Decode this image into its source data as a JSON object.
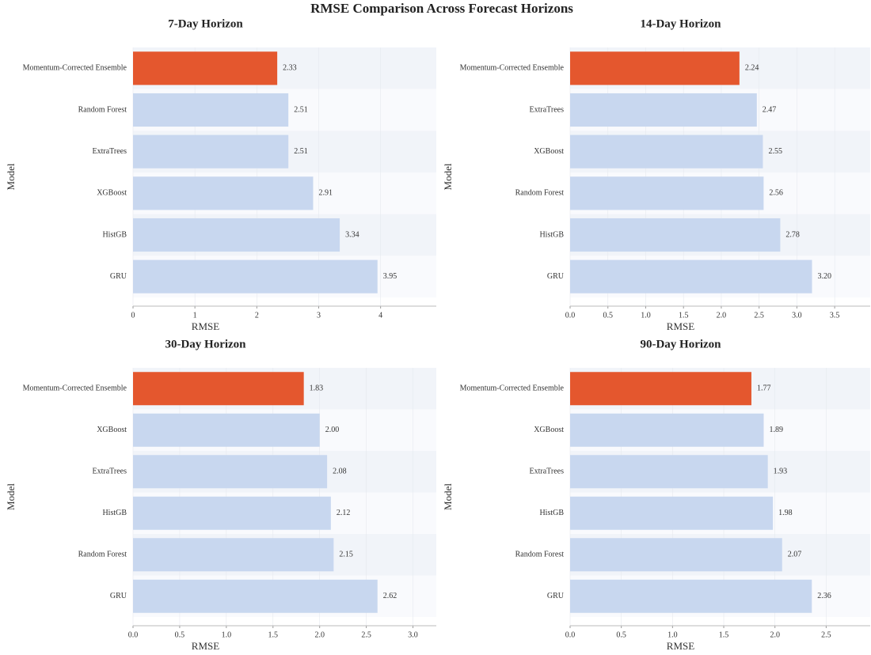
{
  "title": "RMSE Comparison Across Forecast Horizons",
  "chart_data": [
    {
      "type": "barh",
      "title": "7-Day Horizon",
      "xlabel": "RMSE",
      "ylabel": "Model",
      "categories": [
        "Momentum-Corrected Ensemble",
        "Random Forest",
        "ExtraTrees",
        "XGBoost",
        "HistGB",
        "GRU"
      ],
      "values": [
        2.33,
        2.51,
        2.51,
        2.91,
        3.34,
        3.95
      ],
      "value_labels": [
        "2.33",
        "2.51",
        "2.51",
        "2.91",
        "3.34",
        "3.95"
      ],
      "colors": [
        "#e4572e",
        "#c8d7ef",
        "#c8d7ef",
        "#c8d7ef",
        "#c8d7ef",
        "#c8d7ef"
      ],
      "xlim": [
        0,
        4.9
      ],
      "xticks": [
        0,
        1,
        2,
        3,
        4
      ],
      "grid": true
    },
    {
      "type": "barh",
      "title": "14-Day Horizon",
      "xlabel": "RMSE",
      "ylabel": "Model",
      "categories": [
        "Momentum-Corrected Ensemble",
        "ExtraTrees",
        "XGBoost",
        "Random Forest",
        "HistGB",
        "GRU"
      ],
      "values": [
        2.24,
        2.47,
        2.55,
        2.56,
        2.78,
        3.2
      ],
      "value_labels": [
        "2.24",
        "2.47",
        "2.55",
        "2.56",
        "2.78",
        "3.20"
      ],
      "colors": [
        "#e4572e",
        "#c8d7ef",
        "#c8d7ef",
        "#c8d7ef",
        "#c8d7ef",
        "#c8d7ef"
      ],
      "xlim": [
        0,
        3.97
      ],
      "xticks": [
        {
          "value": 0,
          "label": "0.0"
        },
        0.5,
        {
          "value": 1,
          "label": "1.0"
        },
        1.5,
        {
          "value": 2,
          "label": "2.0"
        },
        2.5,
        {
          "value": 3,
          "label": "3.0"
        },
        3.5
      ],
      "grid": true
    },
    {
      "type": "barh",
      "title": "30-Day Horizon",
      "xlabel": "RMSE",
      "ylabel": "Model",
      "categories": [
        "Momentum-Corrected Ensemble",
        "XGBoost",
        "ExtraTrees",
        "HistGB",
        "Random Forest",
        "GRU"
      ],
      "values": [
        1.83,
        2.0,
        2.08,
        2.12,
        2.15,
        2.62
      ],
      "value_labels": [
        "1.83",
        "2.00",
        "2.08",
        "2.12",
        "2.15",
        "2.62"
      ],
      "colors": [
        "#e4572e",
        "#c8d7ef",
        "#c8d7ef",
        "#c8d7ef",
        "#c8d7ef",
        "#c8d7ef"
      ],
      "xlim": [
        0,
        3.25
      ],
      "xticks": [
        {
          "value": 0,
          "label": "0.0"
        },
        0.5,
        {
          "value": 1,
          "label": "1.0"
        },
        1.5,
        {
          "value": 2,
          "label": "2.0"
        },
        2.5,
        {
          "value": 3,
          "label": "3.0"
        }
      ],
      "grid": true
    },
    {
      "type": "barh",
      "title": "90-Day Horizon",
      "xlabel": "RMSE",
      "ylabel": "Model",
      "categories": [
        "Momentum-Corrected Ensemble",
        "XGBoost",
        "ExtraTrees",
        "HistGB",
        "Random Forest",
        "GRU"
      ],
      "values": [
        1.77,
        1.89,
        1.93,
        1.98,
        2.07,
        2.36
      ],
      "value_labels": [
        "1.77",
        "1.89",
        "1.93",
        "1.98",
        "2.07",
        "2.36"
      ],
      "colors": [
        "#e4572e",
        "#c8d7ef",
        "#c8d7ef",
        "#c8d7ef",
        "#c8d7ef",
        "#c8d7ef"
      ],
      "xlim": [
        0,
        2.93
      ],
      "xticks": [
        {
          "value": 0,
          "label": "0.0"
        },
        0.5,
        {
          "value": 1,
          "label": "1.0"
        },
        1.5,
        {
          "value": 2,
          "label": "2.0"
        },
        2.5
      ],
      "grid": true
    }
  ]
}
